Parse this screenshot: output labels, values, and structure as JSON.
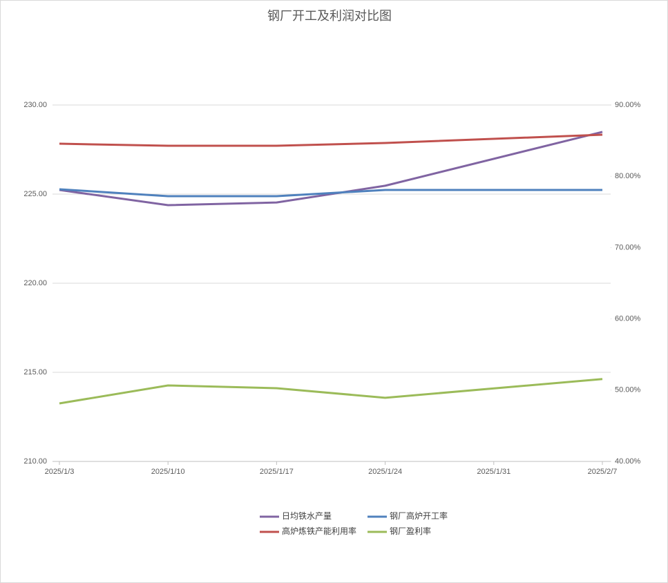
{
  "chart_data": {
    "type": "line",
    "title": "钢厂开工及利润对比图",
    "x": [
      "2025/1/3",
      "2025/1/10",
      "2025/1/17",
      "2025/1/24",
      "2025/2/7"
    ],
    "xticks": [
      "2025/1/3",
      "2025/1/10",
      "2025/1/17",
      "2025/1/24",
      "2025/1/31",
      "2025/2/7"
    ],
    "ylim": [
      210,
      230
    ],
    "yticks": [
      {
        "value": 210,
        "label": "210.00"
      },
      {
        "value": 215,
        "label": "215.00"
      },
      {
        "value": 220,
        "label": "220.00"
      },
      {
        "value": 225,
        "label": "225.00"
      },
      {
        "value": 230,
        "label": "230.00"
      }
    ],
    "y2lim": [
      40,
      90
    ],
    "y2ticks": [
      {
        "value": 40,
        "label": "40.00%"
      },
      {
        "value": 50,
        "label": "50.00%"
      },
      {
        "value": 60,
        "label": "60.00%"
      },
      {
        "value": 70,
        "label": "70.00%"
      },
      {
        "value": 80,
        "label": "80.00%"
      },
      {
        "value": 90,
        "label": "90.00%"
      }
    ],
    "grid": true,
    "legend": "bottom",
    "series": [
      {
        "name": "日均铁水产量",
        "color": "#8064a2",
        "values": [
          225.23,
          224.38,
          224.53,
          225.47,
          228.49
        ]
      },
      {
        "name": "钢厂高炉开工率",
        "color": "#4f81bd",
        "axis": "y2",
        "values": [
          78.18,
          77.21,
          77.21,
          78.08,
          78.08
        ]
      },
      {
        "name": "高炉炼铁产能利用率",
        "color": "#c0504d",
        "axis": "y2",
        "values": [
          84.57,
          84.28,
          84.28,
          84.67,
          85.83
        ]
      },
      {
        "name": "钢厂盈利率",
        "color": "#9bbb59",
        "axis": "y2",
        "values": [
          48.14,
          50.66,
          50.27,
          48.93,
          51.55
        ]
      }
    ]
  }
}
